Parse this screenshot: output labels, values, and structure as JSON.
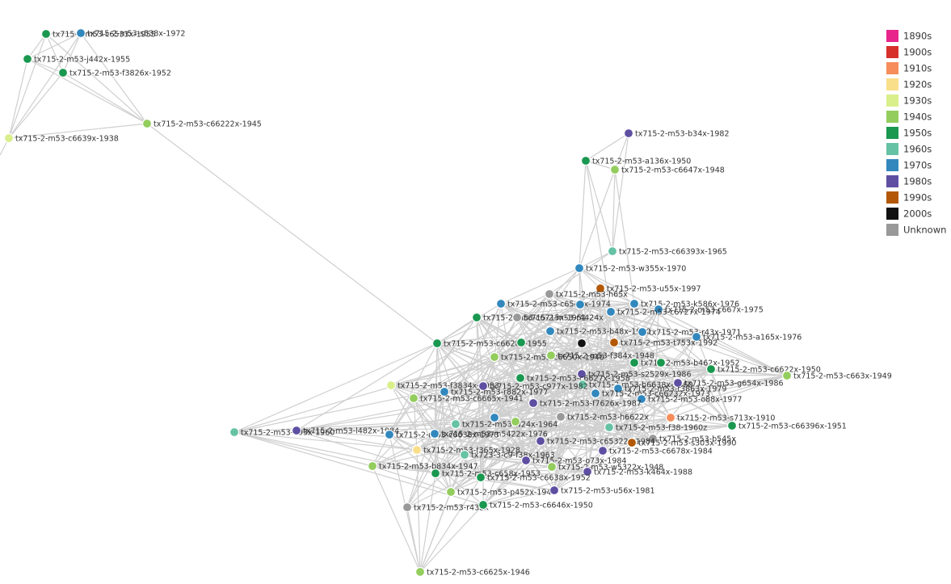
{
  "legend": [
    {
      "label": "1890s",
      "color": "#e8258a"
    },
    {
      "label": "1900s",
      "color": "#d7302b"
    },
    {
      "label": "1910s",
      "color": "#f68d5b"
    },
    {
      "label": "1920s",
      "color": "#fadf8b"
    },
    {
      "label": "1930s",
      "color": "#d9ef8b"
    },
    {
      "label": "1940s",
      "color": "#93cd5e"
    },
    {
      "label": "1950s",
      "color": "#1a9850"
    },
    {
      "label": "1960s",
      "color": "#66c2a5"
    },
    {
      "label": "1970s",
      "color": "#3288bd"
    },
    {
      "label": "1980s",
      "color": "#5e4fa2"
    },
    {
      "label": "1990s",
      "color": "#b35806"
    },
    {
      "label": "2000s",
      "color": "#111111"
    },
    {
      "label": "Unknown",
      "color": "#999999"
    }
  ],
  "nodes": [
    {
      "label": "tx715-2-m53-c6533x-1955"
    },
    {
      "label": "tx715-2-m53-s538x-1972"
    },
    {
      "label": "tx715-2-m53-j442x-1955"
    },
    {
      "label": "tx715-2-m53-f3826x-1952"
    },
    {
      "label": "tx715-2-m53-c66222x-1945"
    },
    {
      "label": "tx715-2-m53-c6639x-1938"
    },
    {
      "label": "tx715-2-m53-b34x-1982"
    },
    {
      "label": "tx715-2-m53-a136x-1950"
    },
    {
      "label": "tx715-2-m53-c6647x-1948"
    },
    {
      "label": "tx715-2-m53-c66393x-1965"
    },
    {
      "label": "tx715-2-m53-w355x-1970"
    },
    {
      "label": "tx715-2-m53-u55x-1997"
    },
    {
      "label": "tx715-2-m53-h65x"
    },
    {
      "label": "tx715-2-m53-c6544x-1974"
    },
    {
      "label": "tx715-2-m53-k586x-1976"
    },
    {
      "label": "tx715-2-m53-c667x-1975"
    },
    {
      "label": "tx715-2-m53-c6727x-1974"
    },
    {
      "label": "tx715-2-m53-c6715x-1951"
    },
    {
      "label": "tx715-2-m53-r4424x"
    },
    {
      "label": "tx715-2-m53-b48x-1970"
    },
    {
      "label": "tx715-2-m53-r43x-1971"
    },
    {
      "label": "tx715-2-m53-a165x-1976"
    },
    {
      "label": "tx715-2-m53-c6628x-1955"
    },
    {
      "label": "tx715-2-m53-t753x-1992"
    },
    {
      "label": "tx715-2-m53-c6650x-1940"
    },
    {
      "label": "tx715-2-m53-f384x-1948"
    },
    {
      "label": "tx715-2-m53-b462x-1952"
    },
    {
      "label": "tx715-2-m53-c6622x-1950"
    },
    {
      "label": "tx715-2-m53-c663x-1949"
    },
    {
      "label": "tx715-2-m53-s2529x-1986"
    },
    {
      "label": "tx715-2-m53-c6627x-1958"
    },
    {
      "label": "tx715-2-m53-b6638x-1960"
    },
    {
      "label": "tx715-2-m53-g654x-1986"
    },
    {
      "label": "tx715-2-m53-f3834x-1933"
    },
    {
      "label": "tx715-2-m53-c977x-1982"
    },
    {
      "label": "tx715-2-m53-r882x-1977"
    },
    {
      "label": "tx715-2-m53-r3863x-1979"
    },
    {
      "label": "tx715-2-m53-c66232x-1973"
    },
    {
      "label": "tx715-2-m53-c6665x-1941"
    },
    {
      "label": "tx715-2-m53-o88x-1977"
    },
    {
      "label": "tx715-2-m53-f7626x-1987"
    },
    {
      "label": "tx715-2-m53-h6622x"
    },
    {
      "label": "tx715-2-m53-w24x-1964"
    },
    {
      "label": "tx715-2-m53-f38-1960z"
    },
    {
      "label": "tx715-2-m53-c66396x-1951"
    },
    {
      "label": "tx715-2-m53-a93x-1960"
    },
    {
      "label": "tx715-2-m53-l482x-1984"
    },
    {
      "label": "tx715-2-m53-c6638x-1973"
    },
    {
      "label": "tx715-2-m53-m5422x-1976"
    },
    {
      "label": "tx715-2-m53-s713x-1910"
    },
    {
      "label": "tx715-2-m53-b545x"
    },
    {
      "label": "tx715-2-m53-c65322x-1984"
    },
    {
      "label": "tx715-2-m53-s303x-1990"
    },
    {
      "label": "tx715-2-m53-c6678x-1984"
    },
    {
      "label": "tx715-2-m53-f365x-1928"
    },
    {
      "label": "tx723-3-c9-f38x-1963"
    },
    {
      "label": "tx715-2-m53-o73x-1984"
    },
    {
      "label": "tx715-2-m53-b834x-1947"
    },
    {
      "label": "tx715-2-m53-w5322x-1948"
    },
    {
      "label": "tx715-2-m53-k464x-1988"
    },
    {
      "label": "tx715-2-m53-c658x-1953"
    },
    {
      "label": "tx715-2-m53-c6638x-1952"
    },
    {
      "label": "tx715-2-m53-p452x-1948"
    },
    {
      "label": "tx715-2-m53-u56x-1981"
    },
    {
      "label": "tx715-2-m53-r432x"
    },
    {
      "label": "tx715-2-m53-c6646x-1950"
    },
    {
      "label": "tx715-2-m53-c6625x-1946"
    }
  ]
}
